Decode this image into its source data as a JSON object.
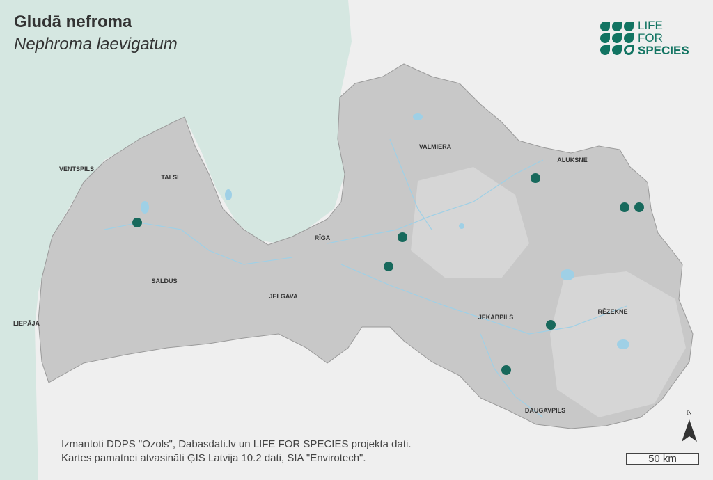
{
  "title": "Gludā nefroma",
  "subtitle": "Nephroma laevigatum",
  "logo": {
    "line1": "LIFE",
    "line2": "FOR",
    "line3": "SPECIES"
  },
  "colors": {
    "sea": "#d5e7e1",
    "land_outside": "#efefef",
    "country_west": "#b9b9b9",
    "country_east": "#cdcdcd",
    "water": "#9fd0e6",
    "observation": "#17695c"
  },
  "places": [
    {
      "name": "VENTSPILS"
    },
    {
      "name": "TALSI"
    },
    {
      "name": "RĪGA"
    },
    {
      "name": "VALMIERA"
    },
    {
      "name": "ALŪKSNE"
    },
    {
      "name": "SALDUS"
    },
    {
      "name": "JELGAVA"
    },
    {
      "name": "LIEPĀJA"
    },
    {
      "name": "JĒKABPILS"
    },
    {
      "name": "RĒZEKNE"
    },
    {
      "name": "DAUGAVPILS"
    }
  ],
  "observation_icon": "filled-circle",
  "credits": {
    "line1": "Izmantoti DDPS \"Ozols\", Dabasdati.lv un LIFE FOR SPECIES projekta dati.",
    "line2": "Kartes pamatnei atvasināti ĢIS Latvija 10.2 dati, SIA \"Envirotech\"."
  },
  "north_label": "N",
  "scale_label": "50 km"
}
